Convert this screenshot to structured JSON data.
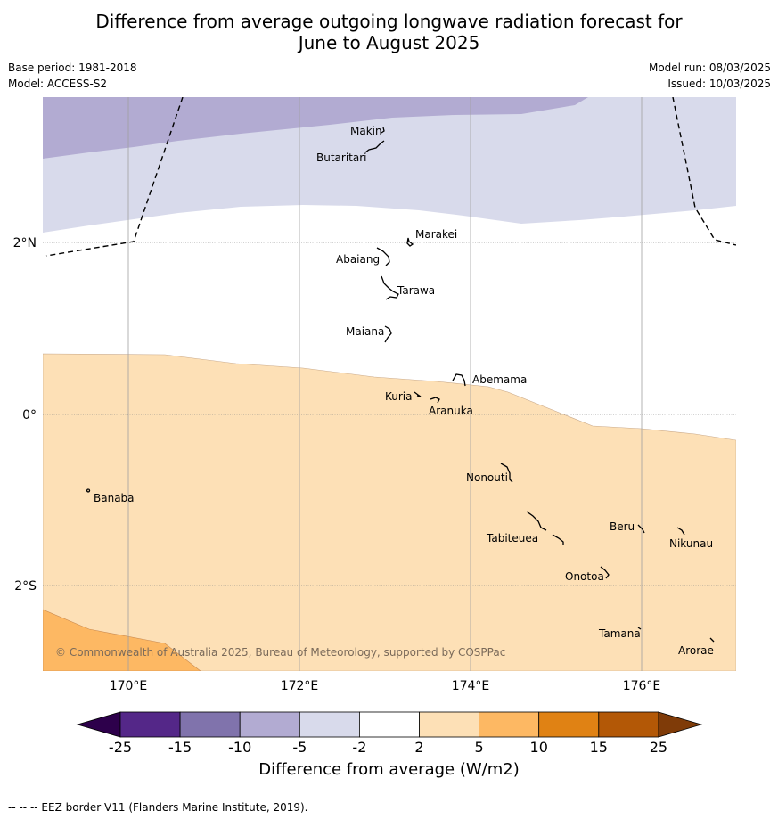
{
  "title": {
    "line1": "Difference from average outgoing longwave radiation forecast for",
    "line2": "June to August 2025"
  },
  "meta": {
    "base_period": "Base period: 1981-2018",
    "model": "Model: ACCESS-S2",
    "model_run": "Model run: 08/03/2025",
    "issued": "Issued: 10/03/2025"
  },
  "map": {
    "lat_labels": [
      "2°N",
      "0°",
      "2°S"
    ],
    "lon_labels": [
      "170°E",
      "172°E",
      "174°E",
      "176°E"
    ],
    "copyright": "© Commonwealth of Australia 2025, Bureau of Meteorology, supported by COSPPac",
    "places": [
      "Makin",
      "Butaritari",
      "Marakei",
      "Abaiang",
      "Tarawa",
      "Maiana",
      "Abemama",
      "Kuria",
      "Aranuka",
      "Nonouti",
      "Banaba",
      "Beru",
      "Tabiteuea",
      "Nikunau",
      "Onotoa",
      "Tamana",
      "Arorae"
    ],
    "colors": {
      "minus10_minus5": "#b2abd2",
      "minus5_minus2": "#d8daeb",
      "plus2_plus5": "#fde0b6",
      "plus5_plus10": "#fdb863"
    }
  },
  "colorbar": {
    "ticks": [
      "-25",
      "-15",
      "-10",
      "-5",
      "-2",
      "2",
      "5",
      "10",
      "15",
      "25"
    ],
    "colors": [
      "#2d004b",
      "#542788",
      "#8073ac",
      "#b2abd2",
      "#d8daeb",
      "#ffffff",
      "#fde0b6",
      "#fdb863",
      "#e08214",
      "#b35806",
      "#7f3b08"
    ],
    "label": "Difference from average (W/m2)"
  },
  "footer": "--  --  -- EEZ border V11 (Flanders Marine Institute, 2019)."
}
